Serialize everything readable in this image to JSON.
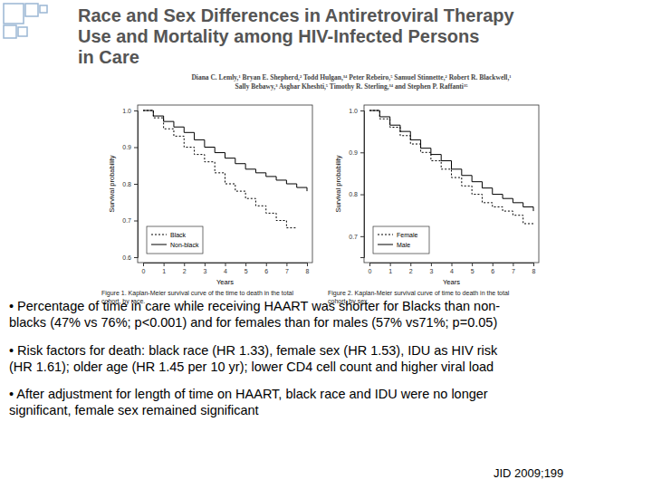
{
  "title": [
    "Race and Sex Differences in Antiretroviral Therapy",
    "Use and Mortality among HIV-Infected Persons",
    "in Care"
  ],
  "authors": [
    "Diana C. Lemly,¹ Bryan E. Shepherd,² Todd Hulgan,³⁴ Peter Rebeiro,⁵ Samuel Stinnette,² Robert R. Blackwell,¹",
    "Sally Bebawy,³ Asghar Kheshti,⁵ Timothy R. Sterling,³⁴ and Stephen P. Raffanti³⁵"
  ],
  "chart_data": [
    {
      "type": "line",
      "caption": [
        "Figure 1.  Kaplan-Meier survival curve of the time to death in the total",
        "cohort, by race."
      ],
      "x_label": "Years",
      "y_label": "Survival probability",
      "x": [
        0,
        0.5,
        1,
        1.5,
        2,
        2.5,
        3,
        3.5,
        4,
        4.5,
        5,
        5.5,
        6,
        6.5,
        7,
        7.5,
        8
      ],
      "series": [
        {
          "name": "Black",
          "color": "#000000",
          "line_style": "dotted",
          "values": [
            1,
            0.98,
            0.95,
            0.93,
            0.9,
            0.88,
            0.86,
            0.83,
            0.8,
            0.78,
            0.76,
            0.74,
            0.72,
            0.7,
            0.68,
            0.68,
            null
          ]
        },
        {
          "name": "Non-black",
          "color": "#000000",
          "line_style": "solid",
          "values": [
            1,
            0.985,
            0.97,
            0.955,
            0.94,
            0.92,
            0.9,
            0.885,
            0.87,
            0.855,
            0.84,
            0.83,
            0.82,
            0.81,
            0.8,
            0.79,
            0.78
          ]
        }
      ],
      "xlim": [
        0,
        8
      ],
      "xticks": [
        0,
        1,
        2,
        3,
        4,
        5,
        6,
        7,
        8
      ],
      "ylim": [
        0.6,
        1
      ],
      "yticks": [
        0.6,
        0.7,
        0.8,
        0.9,
        {
          "value": 1,
          "label": "1.0"
        }
      ],
      "legend": "bottom-left"
    },
    {
      "type": "line",
      "caption": [
        "Figure 2.  Kaplan-Meier survival curve of time to death in the total",
        "cohort, by sex."
      ],
      "x_label": "Years",
      "y_label": "Survival probability",
      "x": [
        0,
        0.5,
        1,
        1.5,
        2,
        2.5,
        3,
        3.5,
        4,
        4.5,
        5,
        5.5,
        6,
        6.5,
        7,
        7.5,
        8
      ],
      "series": [
        {
          "name": "Female",
          "color": "#000000",
          "line_style": "dotted",
          "values": [
            1,
            0.98,
            0.96,
            0.94,
            0.92,
            0.9,
            0.88,
            0.86,
            0.84,
            0.82,
            0.8,
            0.78,
            0.77,
            0.76,
            0.75,
            0.73,
            0.73
          ]
        },
        {
          "name": "Male",
          "color": "#000000",
          "line_style": "solid",
          "values": [
            1,
            0.985,
            0.965,
            0.95,
            0.93,
            0.91,
            0.895,
            0.88,
            0.86,
            0.845,
            0.83,
            0.815,
            0.8,
            0.79,
            0.78,
            0.77,
            0.76
          ]
        }
      ],
      "xlim": [
        0,
        8
      ],
      "xticks": [
        0,
        1,
        2,
        3,
        4,
        5,
        6,
        7,
        8
      ],
      "ylim": [
        0.65,
        1
      ],
      "yticks": [
        0.7,
        0.8,
        0.9,
        {
          "value": 1,
          "label": "1.0"
        }
      ],
      "legend": "bottom-left"
    }
  ],
  "bullets": [
    [
      "• Percentage of time in care while receiving HAART was shorter for Blacks than non-",
      "blacks (47% vs 76%; p<0.001) and for females than for males (57% vs71%; p=0.05)"
    ],
    [
      "• Risk factors for death: black race (HR 1.33), female sex  (HR 1.53), IDU as HIV risk",
      "(HR 1.61); older  age (HR 1.45 per 10 yr); lower CD4 cell count and higher viral load"
    ],
    [
      "• After adjustment for length of time on HAART, black race and IDU were no longer",
      "significant, female sex remained significant"
    ]
  ],
  "citation": "JID 2009;199"
}
